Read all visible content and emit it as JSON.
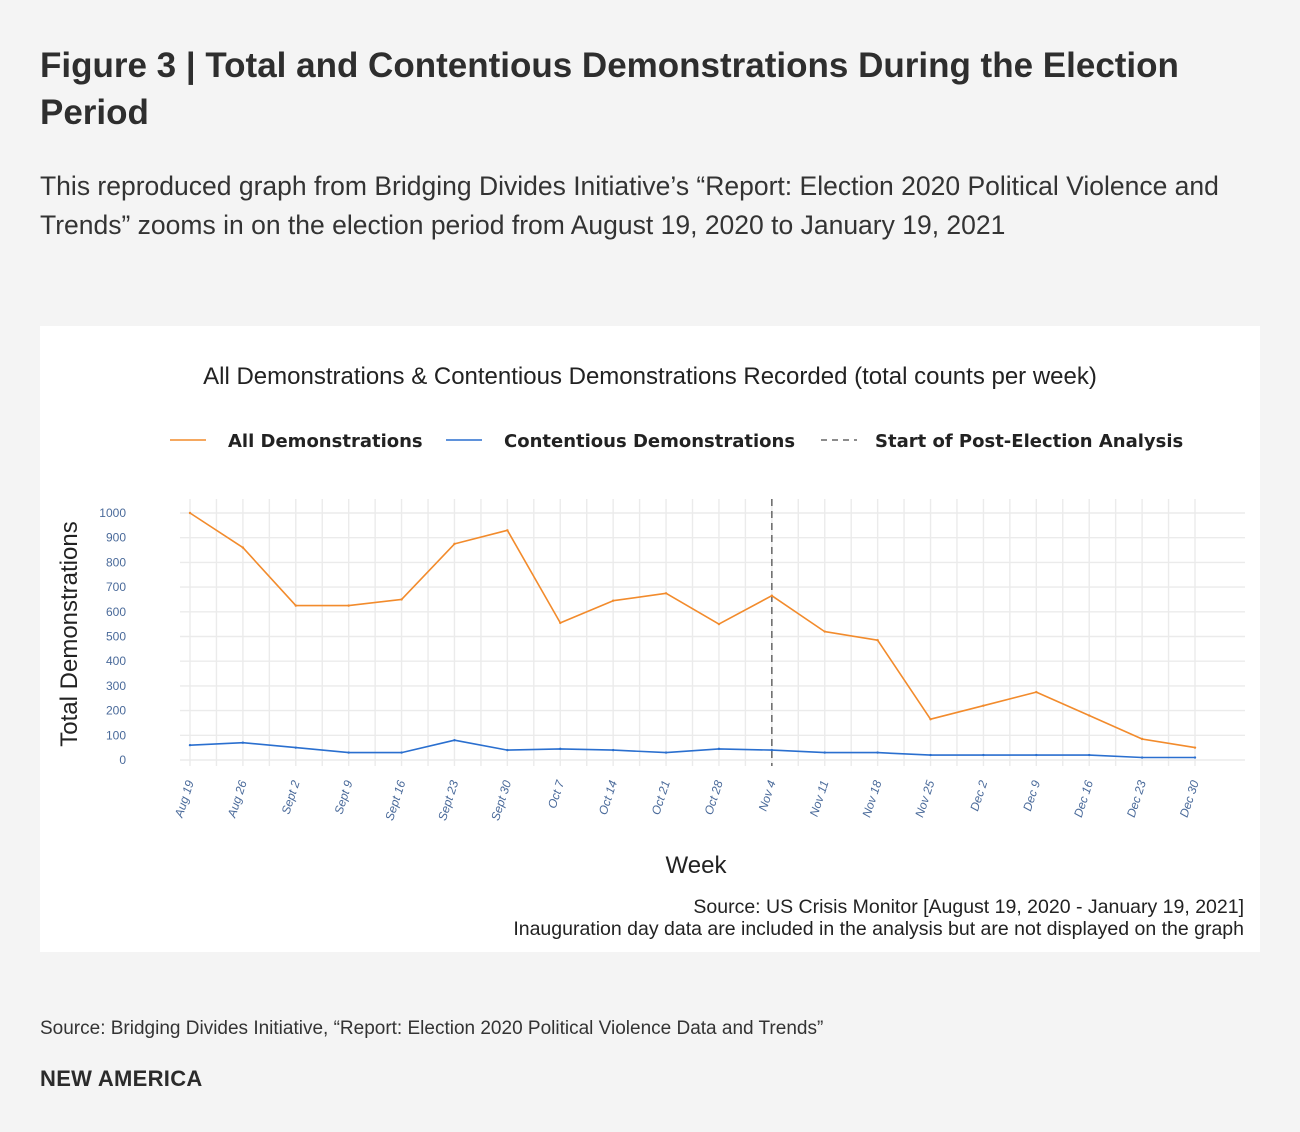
{
  "header": {
    "title": "Figure 3 | Total and Contentious Demonstrations During the Election Period",
    "subtitle": "This reproduced graph from Bridging Divides Initiative’s “Report: Election 2020 Political Violence and Trends” zooms in on the election period from August 19, 2020 to January 19, 2021"
  },
  "footer": {
    "source": "Source: Bridging Divides Initiative, “Report: Election 2020 Political Violence Data and Trends”",
    "brand": "NEW AMERICA"
  },
  "chart_data": {
    "type": "line",
    "title": "All Demonstrations & Contentious Demonstrations Recorded (total counts per week)",
    "xlabel": "Week",
    "ylabel": "Total Demonstrations",
    "ylim": [
      0,
      1000
    ],
    "yticks": [
      0,
      100,
      200,
      300,
      400,
      500,
      600,
      700,
      800,
      900,
      1000
    ],
    "categories": [
      "Aug 19",
      "Aug 26",
      "Sept 2",
      "Sept 9",
      "Sept 16",
      "Sept 23",
      "Sept 30",
      "Oct 7",
      "Oct 14",
      "Oct 21",
      "Oct 28",
      "Nov 4",
      "Nov 11",
      "Nov 18",
      "Nov 25",
      "Dec 2",
      "Dec 9",
      "Dec 16",
      "Dec 23",
      "Dec 30"
    ],
    "series": [
      {
        "name": "All Demonstrations",
        "color": "#f28b2c",
        "values": [
          1000,
          860,
          625,
          625,
          650,
          875,
          930,
          555,
          645,
          675,
          550,
          665,
          520,
          485,
          165,
          220,
          275,
          180,
          85,
          50
        ]
      },
      {
        "name": "Contentious Demonstrations",
        "color": "#2a6fcf",
        "values": [
          60,
          70,
          50,
          30,
          30,
          80,
          40,
          45,
          40,
          30,
          45,
          40,
          30,
          30,
          20,
          20,
          20,
          20,
          10,
          10
        ]
      }
    ],
    "vline": {
      "name": "Start of Post-Election Analysis",
      "category": "Nov 4",
      "color": "#666666",
      "style": "dashed"
    },
    "legend_position": "top",
    "grid": true,
    "notes": [
      "Source: US Crisis Monitor [August 19, 2020 - January 19, 2021]",
      "Inauguration day data are included in the analysis but are not displayed on the graph"
    ]
  }
}
